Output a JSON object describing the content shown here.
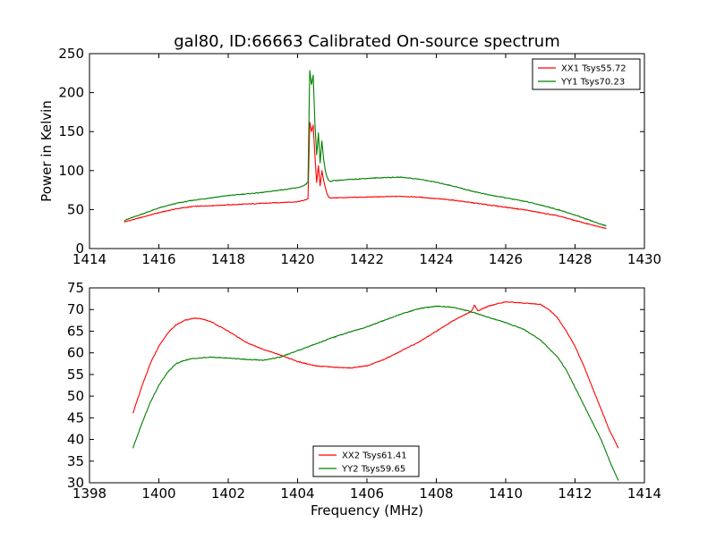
{
  "chart_data": [
    {
      "type": "line",
      "title": "gal80, ID:66663 Calibrated On-source spectrum",
      "xlabel": "",
      "ylabel": "Power in Kelvin",
      "xlim": [
        1414,
        1430
      ],
      "ylim": [
        0,
        250
      ],
      "xticks": [
        "1414",
        "1416",
        "1418",
        "1420",
        "1422",
        "1424",
        "1426",
        "1428",
        "1430"
      ],
      "yticks": [
        "0",
        "50",
        "100",
        "150",
        "200",
        "250"
      ],
      "grid": false,
      "legend_position": "top-right",
      "series": [
        {
          "name": "XX1 Tsys55.72",
          "color": "#ff0000",
          "x": [
            1415.0,
            1415.5,
            1416.0,
            1416.5,
            1417.0,
            1417.5,
            1418.0,
            1418.5,
            1419.0,
            1419.5,
            1420.0,
            1420.2,
            1420.3,
            1420.35,
            1420.4,
            1420.45,
            1420.5,
            1420.55,
            1420.6,
            1420.65,
            1420.7,
            1420.75,
            1420.8,
            1420.85,
            1420.9,
            1420.95,
            1421.0,
            1421.5,
            1422.0,
            1422.5,
            1423.0,
            1423.5,
            1424.0,
            1424.5,
            1425.0,
            1425.5,
            1426.0,
            1426.5,
            1427.0,
            1427.5,
            1428.0,
            1428.5,
            1428.9
          ],
          "y": [
            34,
            40,
            46,
            51,
            54,
            55,
            56,
            57,
            58,
            59,
            60,
            62,
            64,
            162,
            150,
            158,
            118,
            85,
            106,
            80,
            100,
            88,
            78,
            70,
            66,
            65,
            65,
            65.5,
            66,
            66.5,
            67,
            66,
            64,
            62,
            59,
            56,
            53,
            50,
            46,
            42,
            36,
            30,
            26
          ]
        },
        {
          "name": "YY1 Tsys70.23",
          "color": "#008000",
          "x": [
            1415.0,
            1415.5,
            1416.0,
            1416.5,
            1417.0,
            1417.5,
            1418.0,
            1418.5,
            1419.0,
            1419.5,
            1420.0,
            1420.2,
            1420.3,
            1420.35,
            1420.4,
            1420.45,
            1420.5,
            1420.55,
            1420.6,
            1420.65,
            1420.7,
            1420.75,
            1420.8,
            1420.85,
            1420.9,
            1420.95,
            1421.0,
            1421.5,
            1422.0,
            1422.5,
            1423.0,
            1423.5,
            1424.0,
            1424.5,
            1425.0,
            1425.5,
            1426.0,
            1426.5,
            1427.0,
            1427.5,
            1428.0,
            1428.5,
            1428.9
          ],
          "y": [
            36,
            44,
            52,
            58,
            62,
            65,
            68,
            70,
            72,
            75,
            78,
            81,
            85,
            228,
            210,
            222,
            160,
            120,
            148,
            110,
            138,
            115,
            100,
            92,
            87,
            86,
            87,
            88.5,
            90,
            91,
            91.5,
            89,
            85,
            80,
            74,
            69,
            65,
            61,
            56,
            50,
            43,
            35,
            29
          ]
        }
      ]
    },
    {
      "type": "line",
      "title": "",
      "xlabel": "Frequency (MHz)",
      "ylabel": "",
      "xlim": [
        1398,
        1414
      ],
      "ylim": [
        30,
        75
      ],
      "xticks": [
        "1398",
        "1400",
        "1402",
        "1404",
        "1406",
        "1408",
        "1410",
        "1412",
        "1414"
      ],
      "yticks": [
        "30",
        "35",
        "40",
        "45",
        "50",
        "55",
        "60",
        "65",
        "70",
        "75"
      ],
      "grid": false,
      "legend_position": "bottom-center",
      "series": [
        {
          "name": "XX2 Tsys61.41",
          "color": "#ff0000",
          "x": [
            1399.25,
            1399.5,
            1399.75,
            1400.0,
            1400.25,
            1400.5,
            1400.75,
            1401.0,
            1401.25,
            1401.5,
            1402.0,
            1402.5,
            1403.0,
            1403.5,
            1404.0,
            1404.5,
            1405.0,
            1405.5,
            1406.0,
            1406.5,
            1407.0,
            1407.5,
            1408.0,
            1408.5,
            1409.0,
            1409.1,
            1409.2,
            1409.5,
            1410.0,
            1410.5,
            1411.0,
            1411.25,
            1411.5,
            1411.75,
            1412.0,
            1412.25,
            1412.5,
            1412.75,
            1413.0,
            1413.25
          ],
          "y": [
            46,
            52,
            57.5,
            61.5,
            64.5,
            66.5,
            67.5,
            68,
            67.8,
            67.2,
            65,
            62.5,
            60.8,
            59.5,
            58,
            57,
            56.7,
            56.5,
            57,
            58.5,
            60.5,
            62.5,
            65,
            67.5,
            69.5,
            71,
            69.7,
            70.8,
            71.8,
            71.5,
            71.2,
            70,
            68,
            65,
            61.5,
            57,
            52,
            47,
            42,
            38
          ]
        },
        {
          "name": "YY2 Tsys59.65",
          "color": "#008000",
          "x": [
            1399.25,
            1399.5,
            1399.75,
            1400.0,
            1400.25,
            1400.5,
            1400.75,
            1401.0,
            1401.5,
            1402.0,
            1402.5,
            1403.0,
            1403.5,
            1404.0,
            1404.5,
            1405.0,
            1405.5,
            1406.0,
            1406.5,
            1407.0,
            1407.5,
            1408.0,
            1408.5,
            1409.0,
            1409.5,
            1410.0,
            1410.5,
            1411.0,
            1411.5,
            1411.75,
            1412.0,
            1412.25,
            1412.5,
            1412.75,
            1413.0,
            1413.25
          ],
          "y": [
            38,
            43.5,
            48.5,
            52.5,
            55.5,
            57.5,
            58.3,
            58.7,
            59,
            58.8,
            58.5,
            58.3,
            59,
            60.5,
            62,
            63.5,
            64.8,
            66,
            67.5,
            69,
            70.2,
            70.8,
            70.5,
            69.5,
            68.2,
            67,
            65.5,
            63,
            59,
            56,
            52,
            48,
            44,
            40,
            35,
            30.5
          ]
        }
      ]
    }
  ]
}
